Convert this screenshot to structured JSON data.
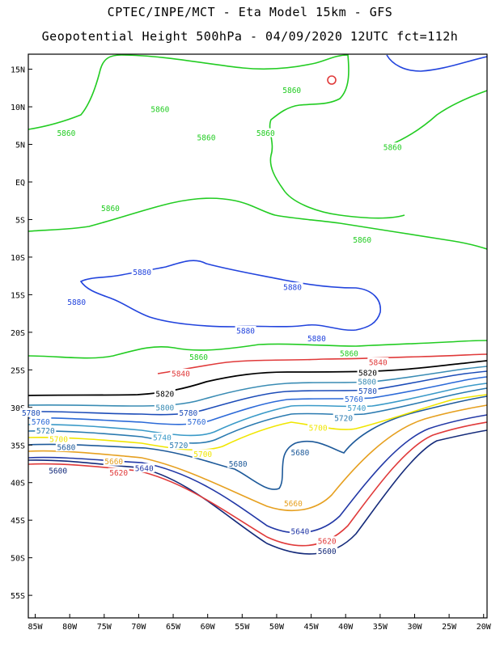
{
  "title_line_1": "CPTEC/INPE/MCT -  Eta Model 15km - GFS",
  "title_line_2": "Geopotential Height 500hPa - 04/09/2020 12UTC fct=112h",
  "lat_labels": [
    "15N",
    "10N",
    "5N",
    "EQ",
    "5S",
    "10S",
    "15S",
    "20S",
    "25S",
    "30S",
    "35S",
    "40S",
    "45S",
    "50S",
    "55S"
  ],
  "lon_labels": [
    "85W",
    "80W",
    "75W",
    "70W",
    "65W",
    "60W",
    "55W",
    "50W",
    "45W",
    "40W",
    "35W",
    "30W",
    "25W",
    "20W"
  ],
  "extent": {
    "lon_min": -86,
    "lon_max": -19.5,
    "lat_min": -58,
    "lat_max": 17
  },
  "colors": {
    "c5560": "#11205c",
    "c5600": "#142a7a",
    "c5620": "#e03a3a",
    "c5640": "#2238a6",
    "c5660": "#e6a020",
    "c5680": "#1e5a9a",
    "c5700": "#f0e600",
    "c5720": "#2a7ab0",
    "c5740": "#3a9ac8",
    "c5760": "#2c6ad8",
    "c5780": "#1c4cb8",
    "c5800": "#3a8cb4",
    "c5820": "#000000",
    "c5840": "#e03a3a",
    "c5860": "#22cc22",
    "c5880": "#2244dd",
    "high": "#e03a3a"
  },
  "contour_labels": [
    {
      "text": "5860",
      "lon": -47.8,
      "lat": 12.2,
      "color": "c5860"
    },
    {
      "text": "5860",
      "lon": -66.9,
      "lat": 9.7,
      "color": "c5860"
    },
    {
      "text": "5860",
      "lon": -80.5,
      "lat": 6.5,
      "color": "c5860"
    },
    {
      "text": "5860",
      "lon": -60.2,
      "lat": 5.9,
      "color": "c5860"
    },
    {
      "text": "5860",
      "lon": -51.6,
      "lat": 6.5,
      "color": "c5860"
    },
    {
      "text": "5860",
      "lon": -33.2,
      "lat": 4.6,
      "color": "c5860"
    },
    {
      "text": "5860",
      "lon": -74.1,
      "lat": -3.5,
      "color": "c5860"
    },
    {
      "text": "5860",
      "lon": -37.6,
      "lat": -7.7,
      "color": "c5860"
    },
    {
      "text": "5880",
      "lon": -69.5,
      "lat": -12.0,
      "color": "c5880"
    },
    {
      "text": "5880",
      "lon": -79.0,
      "lat": -16.0,
      "color": "c5880"
    },
    {
      "text": "5880",
      "lon": -47.7,
      "lat": -14.0,
      "color": "c5880"
    },
    {
      "text": "5880",
      "lon": -54.5,
      "lat": -19.8,
      "color": "c5880"
    },
    {
      "text": "5880",
      "lon": -44.2,
      "lat": -20.8,
      "color": "c5880"
    },
    {
      "text": "5860",
      "lon": -61.3,
      "lat": -23.3,
      "color": "c5860"
    },
    {
      "text": "5860",
      "lon": -39.5,
      "lat": -22.8,
      "color": "c5860"
    },
    {
      "text": "5840",
      "lon": -35.3,
      "lat": -24.0,
      "color": "c5840"
    },
    {
      "text": "5840",
      "lon": -63.9,
      "lat": -25.5,
      "color": "c5840"
    },
    {
      "text": "5820",
      "lon": -36.8,
      "lat": -25.4,
      "color": "c5820"
    },
    {
      "text": "5820",
      "lon": -66.2,
      "lat": -28.2,
      "color": "c5820"
    },
    {
      "text": "5800",
      "lon": -36.9,
      "lat": -26.6,
      "color": "c5800"
    },
    {
      "text": "5800",
      "lon": -66.2,
      "lat": -30.0,
      "color": "c5800"
    },
    {
      "text": "5780",
      "lon": -36.8,
      "lat": -27.8,
      "color": "c5780"
    },
    {
      "text": "5780",
      "lon": -62.8,
      "lat": -30.7,
      "color": "c5780"
    },
    {
      "text": "5760",
      "lon": -38.8,
      "lat": -28.9,
      "color": "c5760"
    },
    {
      "text": "5760",
      "lon": -61.6,
      "lat": -31.9,
      "color": "c5760"
    },
    {
      "text": "5760",
      "lon": -84.2,
      "lat": -31.9,
      "color": "c5760"
    },
    {
      "text": "5780",
      "lon": -85.6,
      "lat": -30.7,
      "color": "c5780"
    },
    {
      "text": "5740",
      "lon": -38.4,
      "lat": -30.1,
      "color": "c5740"
    },
    {
      "text": "5740",
      "lon": -66.6,
      "lat": -34.0,
      "color": "c5740"
    },
    {
      "text": "5720",
      "lon": -40.3,
      "lat": -31.4,
      "color": "c5720"
    },
    {
      "text": "5720",
      "lon": -83.5,
      "lat": -33.1,
      "color": "c5720"
    },
    {
      "text": "5720",
      "lon": -64.2,
      "lat": -35.0,
      "color": "c5720"
    },
    {
      "text": "5700",
      "lon": -44.0,
      "lat": -32.7,
      "color": "c5700"
    },
    {
      "text": "5700",
      "lon": -81.6,
      "lat": -34.2,
      "color": "c5700"
    },
    {
      "text": "5700",
      "lon": -60.7,
      "lat": -36.2,
      "color": "c5700"
    },
    {
      "text": "5680",
      "lon": -80.5,
      "lat": -35.3,
      "color": "c5680"
    },
    {
      "text": "5680",
      "lon": -55.6,
      "lat": -37.5,
      "color": "c5680"
    },
    {
      "text": "5680",
      "lon": -46.6,
      "lat": -36.0,
      "color": "c5680"
    },
    {
      "text": "5660",
      "lon": -73.6,
      "lat": -37.2,
      "color": "c5660"
    },
    {
      "text": "5660",
      "lon": -47.6,
      "lat": -42.8,
      "color": "c5660"
    },
    {
      "text": "5640",
      "lon": -69.2,
      "lat": -38.1,
      "color": "c5640"
    },
    {
      "text": "5640",
      "lon": -46.6,
      "lat": -46.5,
      "color": "c5640"
    },
    {
      "text": "5620",
      "lon": -72.9,
      "lat": -38.7,
      "color": "c5620"
    },
    {
      "text": "5620",
      "lon": -42.7,
      "lat": -47.8,
      "color": "c5620"
    },
    {
      "text": "5600",
      "lon": -81.7,
      "lat": -38.4,
      "color": "c5600"
    },
    {
      "text": "5600",
      "lon": -42.7,
      "lat": -49.1,
      "color": "c5600"
    }
  ]
}
